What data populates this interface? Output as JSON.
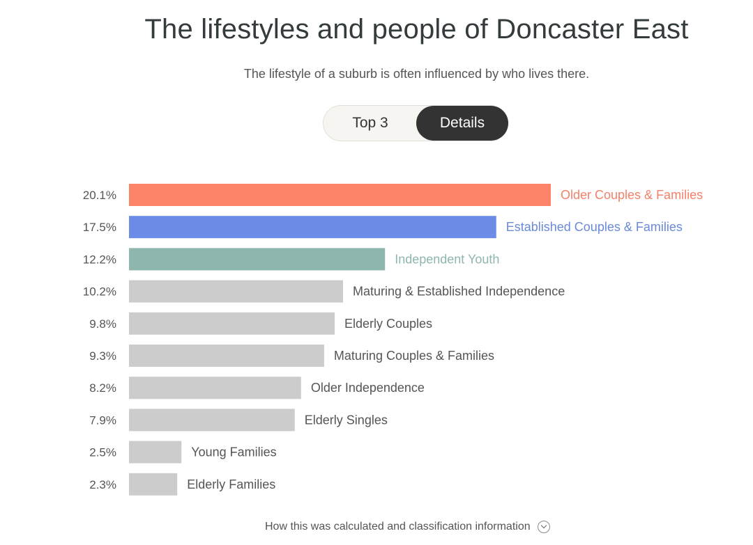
{
  "header": {
    "title": "The lifestyles and people of Doncaster East",
    "subtitle": "The lifestyle of a suburb is often influenced by who lives there."
  },
  "toggle": {
    "options": [
      "Top 3",
      "Details"
    ],
    "selected": "Details"
  },
  "footer": {
    "link_label": "How this was calculated and classification information",
    "icon": "chevron-down-circle-icon"
  },
  "chart_data": {
    "type": "bar",
    "orientation": "horizontal",
    "categories": [
      "Older Couples & Families",
      "Established Couples & Families",
      "Independent Youth",
      "Maturing & Established Independence",
      "Elderly Couples",
      "Maturing Couples & Families",
      "Older Independence",
      "Elderly Singles",
      "Young Families",
      "Elderly Families"
    ],
    "values": [
      20.1,
      17.5,
      12.2,
      10.2,
      9.8,
      9.3,
      8.2,
      7.9,
      2.5,
      2.3
    ],
    "value_labels": [
      "20.1%",
      "17.5%",
      "12.2%",
      "10.2%",
      "9.8%",
      "9.3%",
      "8.2%",
      "7.9%",
      "2.5%",
      "2.3%"
    ],
    "colors": [
      "#fd8369",
      "#6b8be6",
      "#8fb5af",
      "#cccccc",
      "#cccccc",
      "#cccccc",
      "#cccccc",
      "#cccccc",
      "#cccccc",
      "#cccccc"
    ],
    "label_colors": [
      "#f5806a",
      "#6a8ad9",
      "#8fb5af",
      "#555555",
      "#555555",
      "#555555",
      "#555555",
      "#555555",
      "#555555",
      "#555555"
    ],
    "xlim": [
      0,
      20.1
    ],
    "grid": false,
    "legend": "none"
  }
}
